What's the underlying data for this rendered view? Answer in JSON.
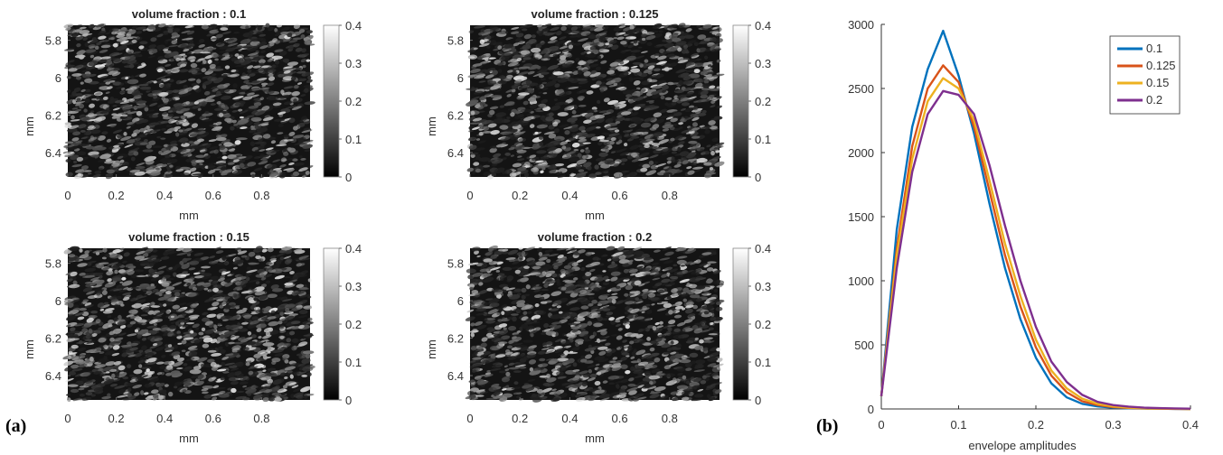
{
  "panel_labels": {
    "a": "(a)",
    "b": "(b)"
  },
  "chart_data": [
    {
      "type": "heatmap",
      "title": "volume fraction : 0.1",
      "xlabel": "mm",
      "ylabel": "mm",
      "xticks": [
        "0",
        "0.2",
        "0.4",
        "0.6",
        "0.8"
      ],
      "yticks": [
        "5.8",
        "6",
        "6.2",
        "6.4"
      ],
      "colorbar_ticks": [
        "0",
        "0.1",
        "0.2",
        "0.3",
        "0.4"
      ],
      "colormap": "gray",
      "clim": [
        0,
        0.4
      ]
    },
    {
      "type": "heatmap",
      "title": "volume fraction : 0.125",
      "xlabel": "mm",
      "ylabel": "mm",
      "xticks": [
        "0",
        "0.2",
        "0.4",
        "0.6",
        "0.8"
      ],
      "yticks": [
        "5.8",
        "6",
        "6.2",
        "6.4"
      ],
      "colorbar_ticks": [
        "0",
        "0.1",
        "0.2",
        "0.3",
        "0.4"
      ],
      "colormap": "gray",
      "clim": [
        0,
        0.4
      ]
    },
    {
      "type": "heatmap",
      "title": "volume fraction : 0.15",
      "xlabel": "mm",
      "ylabel": "mm",
      "xticks": [
        "0",
        "0.2",
        "0.4",
        "0.6",
        "0.8"
      ],
      "yticks": [
        "5.8",
        "6",
        "6.2",
        "6.4"
      ],
      "colorbar_ticks": [
        "0",
        "0.1",
        "0.2",
        "0.3",
        "0.4"
      ],
      "colormap": "gray",
      "clim": [
        0,
        0.4
      ]
    },
    {
      "type": "heatmap",
      "title": "volume fraction : 0.2",
      "xlabel": "mm",
      "ylabel": "mm",
      "xticks": [
        "0",
        "0.2",
        "0.4",
        "0.6",
        "0.8"
      ],
      "yticks": [
        "5.8",
        "6",
        "6.2",
        "6.4"
      ],
      "colorbar_ticks": [
        "0",
        "0.1",
        "0.2",
        "0.3",
        "0.4"
      ],
      "colormap": "gray",
      "clim": [
        0,
        0.4
      ]
    },
    {
      "type": "line",
      "xlabel": "envelope amplitudes",
      "ylabel": "",
      "xlim": [
        0,
        0.4
      ],
      "ylim": [
        0,
        3000
      ],
      "xticks": [
        "0",
        "0.1",
        "0.2",
        "0.3",
        "0.4"
      ],
      "yticks": [
        "0",
        "500",
        "1000",
        "1500",
        "2000",
        "2500",
        "3000"
      ],
      "legend_position": "top-right",
      "grid": false,
      "x": [
        0,
        0.02,
        0.04,
        0.06,
        0.08,
        0.1,
        0.12,
        0.14,
        0.16,
        0.18,
        0.2,
        0.22,
        0.24,
        0.26,
        0.28,
        0.3,
        0.32,
        0.34,
        0.36,
        0.38,
        0.4
      ],
      "series": [
        {
          "name": "0.1",
          "color": "#0072BD",
          "values": [
            100,
            1400,
            2200,
            2650,
            2950,
            2600,
            2150,
            1600,
            1100,
            700,
            400,
            200,
            90,
            40,
            20,
            10,
            5,
            3,
            2,
            1,
            0
          ]
        },
        {
          "name": "0.125",
          "color": "#D95319",
          "values": [
            100,
            1250,
            2050,
            2500,
            2680,
            2550,
            2200,
            1700,
            1200,
            800,
            480,
            260,
            130,
            60,
            30,
            15,
            8,
            4,
            2,
            1,
            0
          ]
        },
        {
          "name": "0.15",
          "color": "#EDB120",
          "values": [
            100,
            1200,
            1950,
            2400,
            2580,
            2500,
            2250,
            1780,
            1290,
            880,
            540,
            300,
            160,
            80,
            40,
            20,
            10,
            5,
            3,
            2,
            0
          ]
        },
        {
          "name": "0.2",
          "color": "#7E2F8E",
          "values": [
            100,
            1100,
            1850,
            2300,
            2480,
            2450,
            2300,
            1900,
            1430,
            1000,
            640,
            370,
            210,
            110,
            55,
            30,
            18,
            10,
            6,
            4,
            2
          ]
        }
      ]
    }
  ]
}
